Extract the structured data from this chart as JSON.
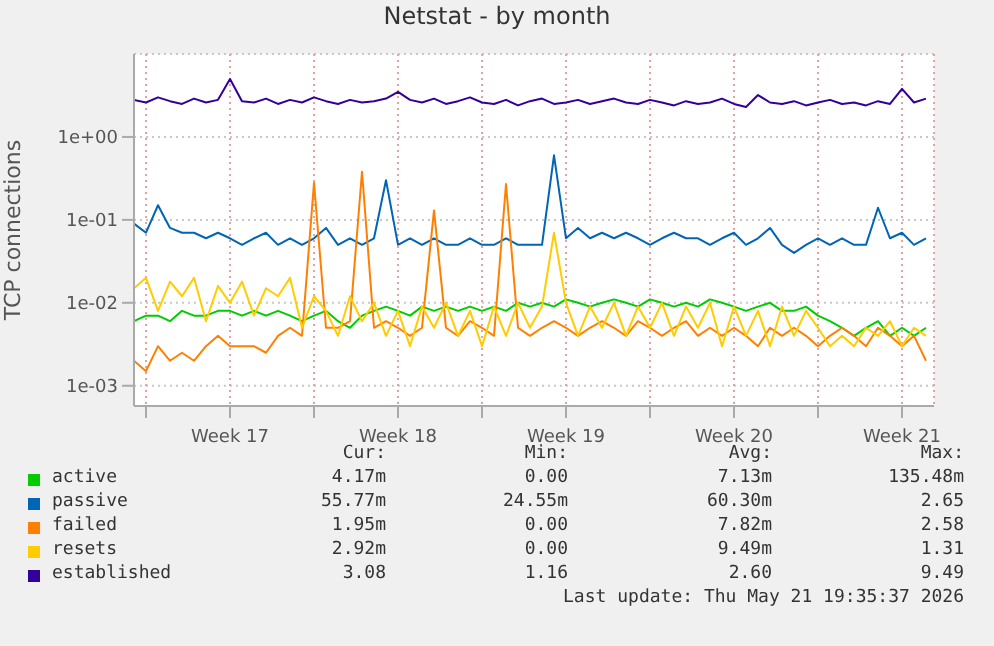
{
  "chart_data": {
    "type": "line",
    "title": "Netstat - by month",
    "ylabel": "TCP connections",
    "log": true,
    "grid": true,
    "legend": "bottom",
    "marker": "none",
    "line_style": "solid",
    "ylim": [
      0.00057,
      10
    ],
    "yticks": [
      {
        "value": 1,
        "label": "1e+00"
      },
      {
        "value": 0.1,
        "label": "1e-01"
      },
      {
        "value": 0.01,
        "label": "1e-02"
      },
      {
        "value": 0.001,
        "label": "1e-03"
      }
    ],
    "xlim": [
      "2026-04-19T12:00",
      "2026-05-22T20:00"
    ],
    "xticks": [
      {
        "value": "2026-04-20T00:00",
        "label": null
      },
      {
        "value": "2026-04-23T12:00",
        "label": "Week 17"
      },
      {
        "value": "2026-04-27T00:00",
        "label": null
      },
      {
        "value": "2026-04-30T12:00",
        "label": "Week 18"
      },
      {
        "value": "2026-05-04T00:00",
        "label": null
      },
      {
        "value": "2026-05-07T12:00",
        "label": "Week 19"
      },
      {
        "value": "2026-05-11T00:00",
        "label": null
      },
      {
        "value": "2026-05-14T12:00",
        "label": "Week 20"
      },
      {
        "value": "2026-05-18T00:00",
        "label": null
      },
      {
        "value": "2026-05-21T12:00",
        "label": "Week 21"
      }
    ],
    "x": [
      "2026-04-19T12:00",
      "2026-04-20T00:00",
      "2026-04-20T12:00",
      "2026-04-21T00:00",
      "2026-04-21T12:00",
      "2026-04-22T00:00",
      "2026-04-22T12:00",
      "2026-04-23T00:00",
      "2026-04-23T12:00",
      "2026-04-24T00:00",
      "2026-04-24T12:00",
      "2026-04-25T00:00",
      "2026-04-25T12:00",
      "2026-04-26T00:00",
      "2026-04-26T12:00",
      "2026-04-27T00:00",
      "2026-04-27T12:00",
      "2026-04-28T00:00",
      "2026-04-28T12:00",
      "2026-04-29T00:00",
      "2026-04-29T12:00",
      "2026-04-30T00:00",
      "2026-04-30T12:00",
      "2026-05-01T00:00",
      "2026-05-01T12:00",
      "2026-05-02T00:00",
      "2026-05-02T12:00",
      "2026-05-03T00:00",
      "2026-05-03T12:00",
      "2026-05-04T00:00",
      "2026-05-04T12:00",
      "2026-05-05T00:00",
      "2026-05-05T12:00",
      "2026-05-06T00:00",
      "2026-05-06T12:00",
      "2026-05-07T00:00",
      "2026-05-07T12:00",
      "2026-05-08T00:00",
      "2026-05-08T12:00",
      "2026-05-09T00:00",
      "2026-05-09T12:00",
      "2026-05-10T00:00",
      "2026-05-10T12:00",
      "2026-05-11T00:00",
      "2026-05-11T12:00",
      "2026-05-12T00:00",
      "2026-05-12T12:00",
      "2026-05-13T00:00",
      "2026-05-13T12:00",
      "2026-05-14T00:00",
      "2026-05-14T12:00",
      "2026-05-15T00:00",
      "2026-05-15T12:00",
      "2026-05-16T00:00",
      "2026-05-16T12:00",
      "2026-05-17T00:00",
      "2026-05-17T12:00",
      "2026-05-18T00:00",
      "2026-05-18T12:00",
      "2026-05-19T00:00",
      "2026-05-19T12:00",
      "2026-05-20T00:00",
      "2026-05-20T12:00",
      "2026-05-21T00:00",
      "2026-05-21T12:00",
      "2026-05-22T00:00",
      "2026-05-22T12:00"
    ],
    "series": [
      {
        "name": "active",
        "color": "#00cc00",
        "values": [
          0.006,
          0.007,
          0.007,
          0.006,
          0.008,
          0.007,
          0.007,
          0.008,
          0.008,
          0.007,
          0.008,
          0.007,
          0.008,
          0.007,
          0.006,
          0.007,
          0.008,
          0.006,
          0.005,
          0.007,
          0.008,
          0.009,
          0.008,
          0.007,
          0.009,
          0.008,
          0.009,
          0.008,
          0.009,
          0.008,
          0.009,
          0.008,
          0.01,
          0.009,
          0.01,
          0.009,
          0.011,
          0.01,
          0.009,
          0.01,
          0.011,
          0.01,
          0.009,
          0.011,
          0.01,
          0.009,
          0.01,
          0.009,
          0.011,
          0.01,
          0.009,
          0.008,
          0.009,
          0.01,
          0.008,
          0.008,
          0.009,
          0.007,
          0.006,
          0.005,
          0.004,
          0.005,
          0.006,
          0.004,
          0.005,
          0.004,
          0.005
        ]
      },
      {
        "name": "passive",
        "color": "#0066b3",
        "values": [
          0.09,
          0.07,
          0.15,
          0.08,
          0.07,
          0.07,
          0.06,
          0.07,
          0.06,
          0.05,
          0.06,
          0.07,
          0.05,
          0.06,
          0.05,
          0.06,
          0.08,
          0.05,
          0.06,
          0.05,
          0.06,
          0.3,
          0.05,
          0.06,
          0.05,
          0.06,
          0.05,
          0.05,
          0.06,
          0.05,
          0.05,
          0.06,
          0.05,
          0.05,
          0.05,
          0.6,
          0.06,
          0.08,
          0.06,
          0.07,
          0.06,
          0.07,
          0.06,
          0.05,
          0.06,
          0.07,
          0.06,
          0.06,
          0.05,
          0.06,
          0.07,
          0.05,
          0.06,
          0.08,
          0.05,
          0.04,
          0.05,
          0.06,
          0.05,
          0.06,
          0.05,
          0.05,
          0.14,
          0.06,
          0.07,
          0.05,
          0.06
        ]
      },
      {
        "name": "failed",
        "color": "#ff8000",
        "values": [
          0.002,
          0.0015,
          0.003,
          0.002,
          0.0025,
          0.002,
          0.003,
          0.004,
          0.003,
          0.003,
          0.003,
          0.0025,
          0.004,
          0.005,
          0.004,
          0.28,
          0.005,
          0.005,
          0.006,
          0.38,
          0.005,
          0.006,
          0.005,
          0.004,
          0.005,
          0.13,
          0.005,
          0.004,
          0.006,
          0.005,
          0.004,
          0.27,
          0.005,
          0.004,
          0.005,
          0.006,
          0.005,
          0.004,
          0.005,
          0.006,
          0.005,
          0.004,
          0.006,
          0.005,
          0.004,
          0.005,
          0.006,
          0.004,
          0.005,
          0.004,
          0.005,
          0.004,
          0.003,
          0.005,
          0.004,
          0.005,
          0.004,
          0.003,
          0.004,
          0.005,
          0.004,
          0.003,
          0.005,
          0.004,
          0.003,
          0.004,
          0.002
        ]
      },
      {
        "name": "resets",
        "color": "#ffcc00",
        "values": [
          0.015,
          0.02,
          0.008,
          0.018,
          0.012,
          0.02,
          0.006,
          0.016,
          0.01,
          0.018,
          0.007,
          0.015,
          0.012,
          0.02,
          0.005,
          0.012,
          0.008,
          0.004,
          0.012,
          0.006,
          0.01,
          0.004,
          0.008,
          0.003,
          0.009,
          0.005,
          0.01,
          0.004,
          0.008,
          0.003,
          0.009,
          0.004,
          0.01,
          0.005,
          0.009,
          0.07,
          0.01,
          0.004,
          0.009,
          0.005,
          0.01,
          0.004,
          0.009,
          0.005,
          0.01,
          0.004,
          0.009,
          0.005,
          0.01,
          0.003,
          0.009,
          0.004,
          0.008,
          0.003,
          0.009,
          0.004,
          0.008,
          0.005,
          0.003,
          0.004,
          0.003,
          0.005,
          0.004,
          0.006,
          0.003,
          0.005,
          0.004
        ]
      },
      {
        "name": "established",
        "color": "#330099",
        "values": [
          2.8,
          2.6,
          3.0,
          2.7,
          2.5,
          2.9,
          2.6,
          2.8,
          5.0,
          2.7,
          2.6,
          2.9,
          2.5,
          2.8,
          2.6,
          3.0,
          2.7,
          2.5,
          2.8,
          2.6,
          2.7,
          2.9,
          3.5,
          2.8,
          2.6,
          2.9,
          2.5,
          2.7,
          3.0,
          2.6,
          2.5,
          2.8,
          2.4,
          2.7,
          2.9,
          2.5,
          2.6,
          2.8,
          2.5,
          2.7,
          2.9,
          2.6,
          2.5,
          2.8,
          2.6,
          2.4,
          2.7,
          2.5,
          2.6,
          2.9,
          2.5,
          2.3,
          3.2,
          2.6,
          2.5,
          2.7,
          2.4,
          2.6,
          2.8,
          2.5,
          2.6,
          2.4,
          2.7,
          2.5,
          3.8,
          2.6,
          2.9
        ]
      }
    ],
    "annotations": [
      "Cur:",
      "Min:",
      "Avg:",
      "Max:",
      "4.17m",
      "0.00",
      "7.13m",
      "135.48m",
      "55.77m",
      "24.55m",
      "60.30m",
      "2.65",
      "1.95m",
      "0.00",
      "7.82m",
      "2.58",
      "2.92m",
      "0.00",
      "9.49m",
      "1.31",
      "3.08",
      "1.16",
      "2.60",
      "9.49",
      "Last update: Thu May 21 19:35:37 2026"
    ]
  }
}
